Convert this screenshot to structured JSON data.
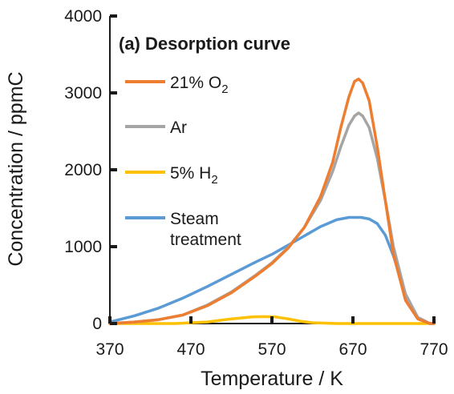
{
  "chart_data": {
    "type": "line",
    "title": "(a) Desorption curve",
    "xlabel": "Temperature / K",
    "ylabel": "Concentration / ppmC",
    "xlim": [
      370,
      770
    ],
    "ylim": [
      0,
      4000
    ],
    "x_ticks": [
      "370",
      "470",
      "570",
      "670",
      "770"
    ],
    "y_ticks": [
      "0",
      "1000",
      "2000",
      "3000",
      "4000"
    ],
    "legend_placement": "left",
    "grid": false,
    "series": [
      {
        "name": "21% O",
        "name_sub": "2",
        "color": "#ed7d31",
        "x": [
          370,
          400,
          430,
          460,
          490,
          520,
          550,
          570,
          590,
          610,
          630,
          645,
          655,
          665,
          672,
          677,
          682,
          690,
          700,
          710,
          720,
          735,
          750,
          765,
          770
        ],
        "y": [
          0,
          20,
          50,
          110,
          230,
          400,
          620,
          780,
          980,
          1250,
          1650,
          2100,
          2550,
          2950,
          3150,
          3180,
          3130,
          2900,
          2300,
          1600,
          900,
          300,
          60,
          0,
          0
        ]
      },
      {
        "name": "Ar",
        "color": "#a5a5a5",
        "x": [
          370,
          400,
          430,
          460,
          490,
          520,
          550,
          570,
          590,
          610,
          630,
          645,
          655,
          665,
          672,
          677,
          682,
          690,
          700,
          710,
          720,
          735,
          750,
          765,
          770
        ],
        "y": [
          0,
          20,
          50,
          110,
          240,
          410,
          630,
          790,
          990,
          1250,
          1600,
          1980,
          2300,
          2580,
          2700,
          2740,
          2700,
          2550,
          2150,
          1600,
          1000,
          380,
          80,
          0,
          0
        ]
      },
      {
        "name": "5% H",
        "name_sub": "2",
        "color": "#ffc000",
        "x": [
          370,
          450,
          490,
          520,
          545,
          560,
          575,
          590,
          605,
          620,
          650,
          700,
          770
        ],
        "y": [
          0,
          0,
          20,
          60,
          85,
          90,
          85,
          60,
          30,
          10,
          0,
          0,
          0
        ]
      },
      {
        "name": "Steam treatment",
        "name_lines": [
          "Steam",
          "treatment"
        ],
        "color": "#5b9bd5",
        "x": [
          370,
          400,
          430,
          460,
          490,
          520,
          550,
          570,
          590,
          610,
          630,
          650,
          665,
          680,
          690,
          700,
          710,
          720,
          735,
          750,
          765,
          770
        ],
        "y": [
          20,
          100,
          200,
          330,
          480,
          640,
          800,
          900,
          1020,
          1140,
          1260,
          1350,
          1380,
          1380,
          1360,
          1300,
          1150,
          880,
          380,
          80,
          0,
          0
        ]
      }
    ]
  }
}
